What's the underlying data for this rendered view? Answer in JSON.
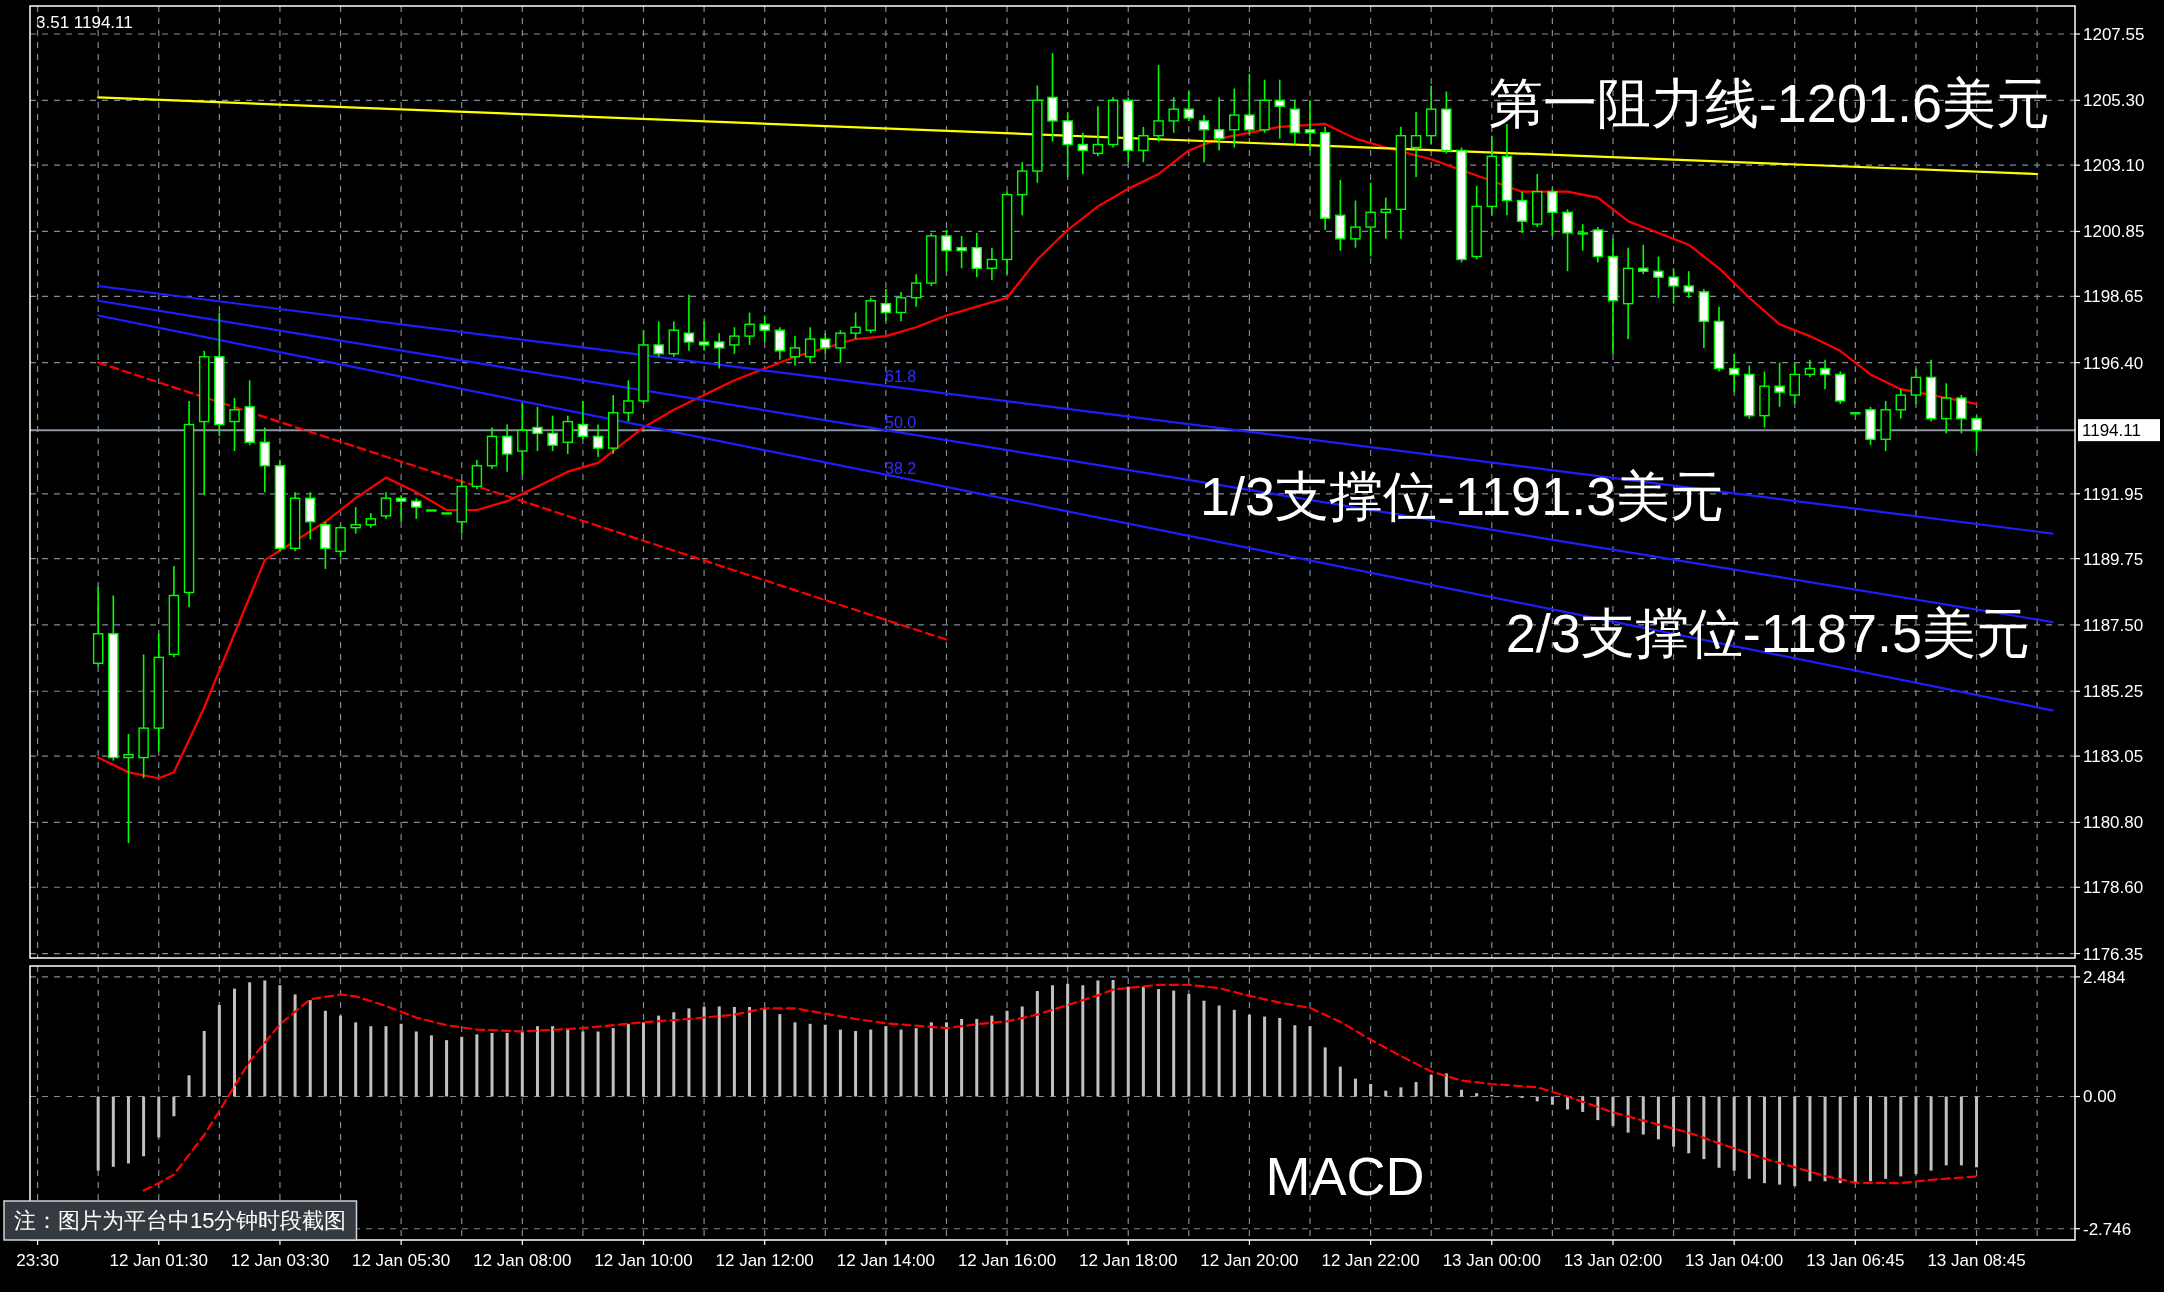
{
  "chart_data": [
    {
      "type": "candlestick",
      "categories": [
        null,
        null,
        null,
        null,
        null,
        null,
        null,
        null,
        null,
        null,
        null,
        null,
        null,
        null,
        null,
        null,
        null,
        null,
        null,
        null,
        null,
        null,
        null,
        null,
        null,
        null,
        null,
        null,
        null,
        null,
        null,
        null,
        null,
        null,
        null,
        null,
        null,
        null,
        null,
        null,
        null,
        null,
        null,
        null,
        null,
        null,
        null,
        null,
        null,
        null,
        null,
        null,
        null,
        null,
        null,
        null,
        null,
        null,
        null,
        null,
        null,
        null,
        null,
        null,
        null,
        null,
        null,
        null,
        null,
        null,
        null,
        null,
        null,
        null,
        null,
        null,
        null,
        null,
        null,
        null,
        null,
        null,
        null,
        null,
        null,
        null,
        null,
        null,
        null,
        null,
        null,
        null,
        null,
        null,
        null,
        null,
        null,
        null,
        null,
        null,
        null,
        null,
        null,
        null,
        null,
        null,
        null,
        null,
        null,
        null,
        null,
        null,
        null,
        null,
        null,
        null,
        null,
        null,
        null,
        null,
        null,
        null,
        null,
        null,
        null,
        null,
        null,
        null,
        null,
        null,
        null,
        null,
        null,
        null,
        null
      ],
      "ohlc": [
        null,
        null,
        null,
        null,
        [
          1186.2,
          1188.8,
          1186.1,
          1187.2
        ],
        [
          1187.2,
          1188.5,
          1182.9,
          1183.0
        ],
        [
          1183.0,
          1183.8,
          1180.1,
          1183.1
        ],
        [
          1183.0,
          1186.5,
          1182.3,
          1184.0
        ],
        [
          1184.0,
          1187.2,
          1183.2,
          1186.4
        ],
        [
          1186.5,
          1189.5,
          1186.4,
          1188.5
        ],
        [
          1188.6,
          1195.1,
          1188.1,
          1194.3
        ],
        [
          1194.4,
          1196.8,
          1191.9,
          1196.6
        ],
        [
          1196.6,
          1198.1,
          1193.9,
          1194.3
        ],
        [
          1194.4,
          1195.2,
          1193.4,
          1194.8
        ],
        [
          1194.9,
          1195.8,
          1193.6,
          1193.7
        ],
        [
          1193.7,
          1194.2,
          1192.0,
          1192.9
        ],
        [
          1192.9,
          1193.1,
          1190.0,
          1190.1
        ],
        [
          1190.1,
          1192.0,
          1190.0,
          1191.8
        ],
        [
          1191.8,
          1192.0,
          1190.4,
          1191.0
        ],
        [
          1190.9,
          1191.0,
          1189.4,
          1190.1
        ],
        [
          1190.0,
          1190.9,
          1189.8,
          1190.8
        ],
        [
          1190.8,
          1191.5,
          1190.6,
          1190.9
        ],
        [
          1190.9,
          1191.3,
          1190.8,
          1191.1
        ],
        [
          1191.2,
          1192.0,
          1191.1,
          1191.8
        ],
        [
          1191.8,
          1191.9,
          1191.0,
          1191.7
        ],
        [
          1191.7,
          1191.8,
          1191.1,
          1191.5
        ],
        [
          1191.4,
          1191.4,
          1191.4,
          1191.4
        ],
        [
          1191.3,
          1191.3,
          1191.3,
          1191.3
        ],
        [
          1191.0,
          1192.4,
          1190.6,
          1192.2
        ],
        [
          1192.2,
          1193.1,
          1192.1,
          1192.9
        ],
        [
          1192.9,
          1194.2,
          1192.8,
          1193.9
        ],
        [
          1193.9,
          1194.3,
          1192.7,
          1193.3
        ],
        [
          1193.4,
          1195.0,
          1192.6,
          1194.1
        ],
        [
          1194.2,
          1194.9,
          1193.4,
          1194.0
        ],
        [
          1194.0,
          1194.6,
          1193.4,
          1193.6
        ],
        [
          1193.7,
          1194.6,
          1193.3,
          1194.4
        ],
        [
          1194.3,
          1195.1,
          1193.8,
          1193.9
        ],
        [
          1193.9,
          1194.3,
          1193.2,
          1193.5
        ],
        [
          1193.5,
          1195.3,
          1193.3,
          1194.7
        ],
        [
          1194.7,
          1195.8,
          1194.4,
          1195.1
        ],
        [
          1195.1,
          1197.5,
          1195.0,
          1197.0
        ],
        [
          1197.0,
          1197.8,
          1196.6,
          1196.7
        ],
        [
          1196.7,
          1197.8,
          1196.6,
          1197.5
        ],
        [
          1197.4,
          1198.7,
          1196.8,
          1197.1
        ],
        [
          1197.1,
          1197.8,
          1196.8,
          1197.0
        ],
        [
          1197.1,
          1197.4,
          1196.2,
          1196.9
        ],
        [
          1197.0,
          1197.6,
          1196.7,
          1197.3
        ],
        [
          1197.3,
          1198.1,
          1197.0,
          1197.7
        ],
        [
          1197.7,
          1198.0,
          1197.1,
          1197.5
        ],
        [
          1197.5,
          1197.6,
          1196.5,
          1196.8
        ],
        [
          1196.6,
          1197.3,
          1196.3,
          1196.9
        ],
        [
          1196.6,
          1197.6,
          1196.4,
          1197.2
        ],
        [
          1197.2,
          1197.4,
          1196.7,
          1196.9
        ],
        [
          1196.9,
          1197.5,
          1196.4,
          1197.4
        ],
        [
          1197.4,
          1198.1,
          1197.2,
          1197.6
        ],
        [
          1197.5,
          1198.6,
          1197.4,
          1198.5
        ],
        [
          1198.4,
          1198.9,
          1197.8,
          1198.1
        ],
        [
          1198.1,
          1198.8,
          1197.8,
          1198.6
        ],
        [
          1198.6,
          1199.4,
          1198.3,
          1199.1
        ],
        [
          1199.1,
          1200.8,
          1199.0,
          1200.7
        ],
        [
          1200.7,
          1200.9,
          1199.5,
          1200.2
        ],
        [
          1200.3,
          1200.7,
          1199.6,
          1200.2
        ],
        [
          1200.3,
          1200.8,
          1199.3,
          1199.6
        ],
        [
          1199.6,
          1200.3,
          1199.2,
          1199.9
        ],
        [
          1199.9,
          1202.2,
          1199.4,
          1202.1
        ],
        [
          1202.1,
          1203.2,
          1201.4,
          1202.9
        ],
        [
          1202.9,
          1205.8,
          1202.5,
          1205.3
        ],
        [
          1205.4,
          1206.9,
          1203.9,
          1204.6
        ],
        [
          1204.6,
          1204.9,
          1202.7,
          1203.8
        ],
        [
          1203.8,
          1204.2,
          1202.8,
          1203.6
        ],
        [
          1203.5,
          1205.1,
          1203.4,
          1203.8
        ],
        [
          1203.8,
          1205.4,
          1203.7,
          1205.3
        ],
        [
          1205.3,
          1205.4,
          1203.2,
          1203.6
        ],
        [
          1203.6,
          1204.4,
          1203.2,
          1204.1
        ],
        [
          1204.1,
          1206.5,
          1203.9,
          1204.6
        ],
        [
          1204.6,
          1205.4,
          1204.2,
          1205.0
        ],
        [
          1205.0,
          1205.6,
          1204.6,
          1204.7
        ],
        [
          1204.6,
          1204.8,
          1203.2,
          1204.3
        ],
        [
          1204.3,
          1205.4,
          1203.6,
          1204.0
        ],
        [
          1204.3,
          1205.7,
          1203.7,
          1204.8
        ],
        [
          1204.8,
          1206.2,
          1204.1,
          1204.3
        ],
        [
          1204.3,
          1206.0,
          1204.2,
          1205.3
        ],
        [
          1205.3,
          1206.0,
          1204.0,
          1205.1
        ],
        [
          1205.0,
          1205.3,
          1203.8,
          1204.2
        ],
        [
          1204.3,
          1205.3,
          1203.6,
          1204.2
        ],
        [
          1204.2,
          1204.4,
          1200.9,
          1201.3
        ],
        [
          1201.4,
          1202.6,
          1200.2,
          1200.6
        ],
        [
          1200.6,
          1201.9,
          1200.3,
          1201.0
        ],
        [
          1201.0,
          1202.5,
          1200.0,
          1201.5
        ],
        [
          1201.5,
          1202.0,
          1200.6,
          1201.6
        ],
        [
          1201.6,
          1204.4,
          1200.6,
          1204.1
        ],
        [
          1203.7,
          1204.9,
          1202.7,
          1204.1
        ],
        [
          1204.1,
          1205.8,
          1203.8,
          1205.0
        ],
        [
          1205.0,
          1205.6,
          1203.5,
          1203.6
        ],
        [
          1203.6,
          1203.7,
          1199.8,
          1199.9
        ],
        [
          1200.0,
          1202.4,
          1199.9,
          1201.7
        ],
        [
          1201.7,
          1204.1,
          1201.4,
          1203.4
        ],
        [
          1203.4,
          1204.5,
          1201.4,
          1201.9
        ],
        [
          1201.9,
          1202.2,
          1200.8,
          1201.2
        ],
        [
          1201.1,
          1202.8,
          1201.0,
          1202.2
        ],
        [
          1202.2,
          1202.3,
          1200.7,
          1201.5
        ],
        [
          1201.5,
          1201.6,
          1199.5,
          1200.8
        ],
        [
          1200.8,
          1201.1,
          1200.2,
          1200.8
        ],
        [
          1200.9,
          1201.0,
          1199.8,
          1200.0
        ],
        [
          1200.0,
          1200.6,
          1196.7,
          1198.5
        ],
        [
          1198.4,
          1200.3,
          1197.2,
          1199.6
        ],
        [
          1199.6,
          1200.4,
          1199.4,
          1199.5
        ],
        [
          1199.5,
          1200.0,
          1198.6,
          1199.3
        ],
        [
          1199.3,
          1199.6,
          1198.4,
          1199.0
        ],
        [
          1199.0,
          1199.5,
          1198.6,
          1198.8
        ],
        [
          1198.8,
          1198.9,
          1196.9,
          1197.8
        ],
        [
          1197.8,
          1198.3,
          1196.1,
          1196.2
        ],
        [
          1196.2,
          1196.7,
          1195.4,
          1196.0
        ],
        [
          1196.0,
          1196.3,
          1194.5,
          1194.6
        ],
        [
          1194.6,
          1196.1,
          1194.2,
          1195.6
        ],
        [
          1195.6,
          1196.4,
          1194.9,
          1195.4
        ],
        [
          1195.3,
          1196.4,
          1195.0,
          1196.0
        ],
        [
          1196.0,
          1196.5,
          1195.9,
          1196.2
        ],
        [
          1196.2,
          1196.5,
          1195.5,
          1196.0
        ],
        [
          1196.0,
          1196.1,
          1195.0,
          1195.1
        ],
        [
          1194.7,
          1194.7,
          1194.7,
          1194.7
        ],
        [
          1194.8,
          1194.9,
          1193.6,
          1193.8
        ],
        [
          1193.8,
          1195.1,
          1193.4,
          1194.8
        ],
        [
          1194.8,
          1195.5,
          1194.5,
          1195.3
        ],
        [
          1195.3,
          1196.2,
          1195.0,
          1195.9
        ],
        [
          1195.9,
          1196.5,
          1194.4,
          1194.5
        ],
        [
          1194.5,
          1195.7,
          1194.0,
          1195.2
        ],
        [
          1195.2,
          1195.3,
          1194.0,
          1194.5
        ],
        [
          1194.5,
          1194.6,
          1193.4,
          1194.1
        ],
        null,
        null,
        null,
        null,
        null,
        null
      ],
      "series": [
        {
          "type": "line",
          "color": "#ff0000",
          "values": [
            null,
            null,
            null,
            null,
            1183.0,
            null,
            1182.5,
            null,
            1182.3,
            1182.5,
            null,
            1184.7,
            null,
            1187.2,
            null,
            1189.7,
            null,
            null,
            null,
            1191.0,
            null,
            1191.8,
            null,
            1192.5,
            null,
            1192.0,
            null,
            1191.4,
            null,
            1191.4,
            null,
            1191.7,
            null,
            1192.2,
            null,
            1192.7,
            null,
            1193.0,
            null,
            null,
            1194.2,
            null,
            1194.8,
            null,
            1195.3,
            null,
            1195.8,
            null,
            1196.2,
            null,
            1196.6,
            null,
            null,
            null,
            1197.2,
            null,
            1197.3,
            null,
            1197.6,
            null,
            1198.0,
            null,
            1198.3,
            null,
            1198.6,
            null,
            1199.9,
            null,
            1200.9,
            null,
            1201.7,
            null,
            1202.3,
            null,
            1202.8,
            null,
            1203.6,
            null,
            1204.0,
            null,
            null,
            null,
            1204.4,
            null,
            null,
            1204.5,
            null,
            1204.0,
            null,
            1203.7,
            null,
            null,
            1203.3,
            null,
            null,
            null,
            null,
            null,
            1202.2,
            null,
            null,
            1202.2,
            null,
            1202.0,
            null,
            1201.2,
            null,
            1200.8,
            null,
            1200.4,
            null,
            1199.6,
            null,
            1198.6,
            null,
            1197.7,
            null,
            1197.3,
            null,
            1196.8,
            null,
            1196.0,
            null,
            1195.5,
            null,
            null,
            null,
            null,
            1195.0,
            null,
            null,
            null,
            null,
            null,
            null
          ]
        },
        {
          "type": "line",
          "color": "#ffff00",
          "values": [
            null,
            null,
            null,
            null,
            1205.4,
            null,
            null,
            null,
            null,
            null,
            null,
            null,
            null,
            null,
            null,
            null,
            null,
            null,
            null,
            null,
            null,
            null,
            null,
            null,
            null,
            null,
            null,
            null,
            null,
            null,
            null,
            null,
            null,
            null,
            null,
            null,
            null,
            null,
            null,
            null,
            null,
            null,
            null,
            null,
            null,
            null,
            null,
            null,
            null,
            null,
            null,
            null,
            null,
            null,
            null,
            null,
            null,
            null,
            null,
            null,
            null,
            null,
            null,
            null,
            null,
            null,
            null,
            null,
            null,
            null,
            null,
            null,
            null,
            null,
            null,
            null,
            null,
            null,
            null,
            null,
            null,
            null,
            null,
            null,
            null,
            null,
            null,
            null,
            null,
            null,
            null,
            null,
            null,
            null,
            null,
            null,
            null,
            null,
            null,
            null,
            null,
            null,
            null,
            null,
            null,
            null,
            null,
            null,
            null,
            null,
            null,
            null,
            null,
            null,
            null,
            null,
            null,
            null,
            null,
            null,
            null,
            null,
            null,
            null,
            null,
            null,
            null,
            null,
            null,
            null,
            null,
            null,
            1202.8,
            null,
            null
          ]
        },
        {
          "type": "line",
          "color": "#1e1eff",
          "values": [
            null,
            null,
            null,
            null,
            1199.0,
            null,
            null,
            null,
            null,
            null,
            null,
            null,
            null,
            null,
            null,
            null,
            null,
            null,
            null,
            null,
            null,
            null,
            null,
            null,
            null,
            null,
            null,
            null,
            null,
            null,
            null,
            null,
            null,
            null,
            null,
            null,
            null,
            null,
            null,
            null,
            null,
            null,
            null,
            null,
            null,
            null,
            null,
            null,
            null,
            null,
            null,
            null,
            null,
            null,
            null,
            null,
            null,
            null,
            null,
            null,
            null,
            null,
            null,
            null,
            null,
            null,
            null,
            null,
            null,
            null,
            null,
            null,
            null,
            null,
            null,
            null,
            null,
            null,
            null,
            null,
            null,
            null,
            null,
            null,
            null,
            null,
            null,
            null,
            null,
            null,
            null,
            null,
            null,
            null,
            null,
            null,
            null,
            null,
            null,
            null,
            null,
            null,
            null,
            null,
            null,
            null,
            null,
            null,
            null,
            null,
            null,
            null,
            null,
            null,
            null,
            null,
            null,
            null,
            null,
            null,
            null,
            null,
            null,
            null,
            null,
            null,
            null,
            null,
            null,
            null,
            null,
            null,
            null,
            1190.6,
            null
          ]
        },
        {
          "type": "line",
          "color": "#1e1eff",
          "values": [
            null,
            null,
            null,
            null,
            1198.5,
            null,
            null,
            null,
            null,
            null,
            null,
            null,
            null,
            null,
            null,
            null,
            null,
            null,
            null,
            null,
            null,
            null,
            null,
            null,
            null,
            null,
            null,
            null,
            null,
            null,
            null,
            null,
            null,
            null,
            null,
            null,
            null,
            null,
            null,
            null,
            null,
            null,
            null,
            null,
            null,
            null,
            null,
            null,
            null,
            null,
            null,
            null,
            null,
            null,
            null,
            null,
            null,
            null,
            null,
            null,
            null,
            null,
            null,
            null,
            null,
            null,
            null,
            null,
            null,
            null,
            null,
            null,
            null,
            null,
            null,
            null,
            null,
            null,
            null,
            null,
            null,
            null,
            null,
            null,
            null,
            null,
            null,
            null,
            null,
            null,
            null,
            null,
            null,
            null,
            null,
            null,
            null,
            null,
            null,
            null,
            null,
            null,
            null,
            null,
            null,
            null,
            null,
            null,
            null,
            null,
            null,
            null,
            null,
            null,
            null,
            null,
            null,
            null,
            null,
            null,
            null,
            null,
            null,
            null,
            null,
            null,
            null,
            null,
            null,
            null,
            null,
            null,
            null,
            1187.6,
            null
          ]
        },
        {
          "type": "line",
          "color": "#1e1eff",
          "values": [
            null,
            null,
            null,
            null,
            1198.0,
            null,
            null,
            null,
            null,
            null,
            null,
            null,
            null,
            null,
            null,
            null,
            null,
            null,
            null,
            null,
            null,
            null,
            null,
            null,
            null,
            null,
            null,
            null,
            null,
            null,
            null,
            null,
            null,
            null,
            null,
            null,
            null,
            null,
            null,
            null,
            null,
            null,
            null,
            null,
            null,
            null,
            null,
            null,
            null,
            null,
            null,
            null,
            null,
            null,
            null,
            null,
            null,
            null,
            null,
            null,
            null,
            null,
            null,
            null,
            null,
            null,
            null,
            null,
            null,
            null,
            null,
            null,
            null,
            null,
            null,
            null,
            null,
            null,
            null,
            null,
            null,
            null,
            null,
            null,
            null,
            null,
            null,
            null,
            null,
            null,
            null,
            null,
            null,
            null,
            null,
            null,
            null,
            null,
            null,
            null,
            null,
            null,
            null,
            null,
            null,
            null,
            null,
            null,
            null,
            null,
            null,
            null,
            null,
            null,
            null,
            null,
            null,
            null,
            null,
            null,
            null,
            null,
            null,
            null,
            null,
            null,
            null,
            null,
            null,
            null,
            null,
            null,
            null,
            1184.6,
            null
          ]
        },
        {
          "type": "line",
          "color": "#ff0000",
          "line_style": "dashed",
          "values": [
            null,
            null,
            null,
            null,
            1196.4,
            null,
            null,
            null,
            null,
            null,
            null,
            null,
            null,
            null,
            null,
            null,
            null,
            null,
            null,
            null,
            null,
            null,
            null,
            null,
            null,
            null,
            null,
            null,
            null,
            null,
            null,
            null,
            null,
            null,
            null,
            null,
            null,
            null,
            null,
            null,
            null,
            null,
            null,
            null,
            null,
            null,
            null,
            null,
            null,
            null,
            null,
            null,
            null,
            null,
            null,
            null,
            null,
            null,
            null,
            null,
            1187.0,
            null,
            null,
            null,
            null,
            null,
            null,
            null,
            null,
            null,
            null,
            null,
            null,
            null,
            null,
            null,
            null,
            null,
            null,
            null,
            null,
            null,
            null,
            null,
            null,
            null,
            null,
            null,
            null,
            null,
            null,
            null,
            null,
            null,
            null,
            null,
            null,
            null,
            null,
            null,
            null,
            null,
            null,
            null,
            null,
            null,
            null,
            null,
            null,
            null,
            null,
            null,
            null,
            null,
            null,
            null,
            null,
            null,
            null,
            null,
            null,
            null,
            null,
            null,
            null,
            null,
            null,
            null,
            null,
            null,
            null,
            null,
            null,
            null,
            null
          ]
        }
      ],
      "ylim": [
        1176.2,
        1208.5
      ],
      "yticks": [
        {
          "value": 1207.55,
          "label": "1207.55"
        },
        {
          "value": 1205.3,
          "label": "1205.30"
        },
        {
          "value": 1203.1,
          "label": "1203.10"
        },
        {
          "value": 1200.85,
          "label": "1200.85"
        },
        {
          "value": 1198.65,
          "label": "1198.65"
        },
        {
          "value": 1196.4,
          "label": "1196.40"
        },
        {
          "value": 1191.95,
          "label": "1191.95"
        },
        {
          "value": 1189.75,
          "label": "1189.75"
        },
        {
          "value": 1187.5,
          "label": "1187.50"
        },
        {
          "value": 1185.25,
          "label": "1185.25"
        },
        {
          "value": 1183.05,
          "label": "1183.05"
        },
        {
          "value": 1180.8,
          "label": "1180.80"
        },
        {
          "value": 1178.6,
          "label": "1178.60"
        },
        {
          "value": 1176.35,
          "label": "1176.35"
        }
      ],
      "ref_lines": [
        {
          "axis": "y",
          "value": 1194.11,
          "label": "1194.11",
          "color": "#8c96a0"
        }
      ],
      "grid": true,
      "tick_labels": "y",
      "annotations": [
        "3.51 1194.11",
        "第一阻力线-1201.6美元",
        "1/3支撑位-1191.3美元",
        "2/3支撑位-1187.5美元",
        "61.8",
        "50.0",
        "38.2"
      ]
    },
    {
      "type": "bar",
      "categories": [
        "23:30",
        null,
        null,
        null,
        null,
        null,
        null,
        null,
        "12 Jan 01:30",
        null,
        null,
        null,
        null,
        null,
        null,
        null,
        "12 Jan 03:30",
        null,
        null,
        null,
        null,
        null,
        null,
        null,
        "12 Jan 05:30",
        null,
        null,
        null,
        null,
        null,
        null,
        null,
        "12 Jan 08:00",
        null,
        null,
        null,
        null,
        null,
        null,
        null,
        "12 Jan 10:00",
        null,
        null,
        null,
        null,
        null,
        null,
        null,
        "12 Jan 12:00",
        null,
        null,
        null,
        null,
        null,
        null,
        null,
        "12 Jan 14:00",
        null,
        null,
        null,
        null,
        null,
        null,
        null,
        "12 Jan 16:00",
        null,
        null,
        null,
        null,
        null,
        null,
        null,
        "12 Jan 18:00",
        null,
        null,
        null,
        null,
        null,
        null,
        null,
        "12 Jan 20:00",
        null,
        null,
        null,
        null,
        null,
        null,
        null,
        "12 Jan 22:00",
        null,
        null,
        null,
        null,
        null,
        null,
        null,
        "13 Jan 00:00",
        null,
        null,
        null,
        null,
        null,
        null,
        null,
        "13 Jan 02:00",
        null,
        null,
        null,
        null,
        null,
        null,
        null,
        "13 Jan 04:00",
        null,
        null,
        null,
        null,
        null,
        null,
        null,
        "13 Jan 06:45",
        null,
        null,
        null,
        null,
        null,
        null,
        null,
        "13 Jan 08:45",
        null,
        null,
        null,
        null,
        null,
        null
      ],
      "series": [
        {
          "type": "bar",
          "color": "#c0c0c0",
          "values": [
            null,
            null,
            null,
            null,
            -1.54,
            -1.46,
            -1.39,
            -1.24,
            -0.85,
            -0.41,
            0.44,
            1.36,
            1.9,
            2.24,
            2.37,
            2.41,
            2.31,
            2.12,
            2.0,
            1.78,
            1.68,
            1.54,
            1.46,
            1.46,
            1.51,
            1.35,
            1.27,
            1.17,
            1.24,
            1.29,
            1.32,
            1.32,
            1.35,
            1.46,
            1.46,
            1.42,
            1.35,
            1.35,
            1.42,
            1.51,
            1.54,
            1.68,
            1.75,
            1.83,
            1.86,
            1.87,
            1.86,
            1.86,
            1.83,
            1.71,
            1.54,
            1.51,
            1.49,
            1.39,
            1.36,
            1.39,
            1.46,
            1.39,
            1.42,
            1.54,
            1.54,
            1.61,
            1.61,
            1.68,
            1.78,
            1.87,
            2.19,
            2.31,
            2.34,
            2.31,
            2.41,
            2.42,
            2.28,
            2.28,
            2.23,
            2.2,
            2.13,
            1.99,
            1.89,
            1.8,
            1.7,
            1.66,
            1.63,
            1.48,
            1.46,
            1.02,
            0.62,
            0.37,
            0.26,
            0.12,
            0.19,
            0.3,
            0.45,
            0.48,
            0.14,
            0.07,
            0.03,
            -0.02,
            -0.03,
            -0.1,
            -0.17,
            -0.27,
            -0.32,
            -0.49,
            -0.61,
            -0.75,
            -0.79,
            -0.89,
            -1.04,
            -1.18,
            -1.3,
            -1.48,
            -1.54,
            -1.71,
            -1.8,
            -1.83,
            -1.86,
            -1.76,
            -1.76,
            -1.8,
            -1.8,
            -1.76,
            -1.71,
            -1.66,
            -1.61,
            -1.54,
            -1.43,
            -1.43,
            -1.47,
            null,
            null,
            null,
            null,
            null,
            null
          ]
        },
        {
          "type": "line",
          "color": "#ff0000",
          "line_style": "dashed",
          "values": [
            null,
            null,
            null,
            null,
            null,
            null,
            null,
            -1.95,
            -1.8,
            -1.62,
            null,
            -0.8,
            -0.3,
            null,
            0.73,
            null,
            1.5,
            null,
            2.02,
            null,
            2.12,
            2.08,
            null,
            1.88,
            null,
            1.64,
            null,
            1.48,
            null,
            1.39,
            null,
            null,
            1.35,
            null,
            null,
            null,
            1.42,
            null,
            null,
            null,
            1.54,
            null,
            null,
            1.61,
            null,
            null,
            1.7,
            null,
            1.83,
            null,
            1.83,
            null,
            1.72,
            null,
            1.61,
            null,
            1.52,
            null,
            1.47,
            null,
            1.42,
            null,
            1.5,
            null,
            1.56,
            null,
            1.7,
            null,
            1.9,
            null,
            2.1,
            2.22,
            null,
            null,
            2.32,
            null,
            2.32,
            null,
            2.25,
            null,
            2.09,
            null,
            1.95,
            null,
            1.84,
            null,
            1.55,
            null,
            1.18,
            null,
            0.84,
            null,
            0.52,
            null,
            0.33,
            null,
            0.26,
            null,
            null,
            0.19,
            null,
            0.0,
            null,
            null,
            -0.33,
            null,
            -0.5,
            null,
            null,
            -0.75,
            null,
            -0.97,
            null,
            null,
            -1.29,
            null,
            -1.47,
            null,
            -1.65,
            null,
            -1.79,
            null,
            null,
            -1.8,
            null,
            -1.73,
            null,
            null,
            -1.66,
            null,
            null,
            null,
            null,
            null,
            null
          ]
        }
      ],
      "ylim": [
        -2.98,
        2.71
      ],
      "yticks": [
        {
          "value": 2.484,
          "label": "2.484"
        },
        {
          "value": 0,
          "label": "0.00"
        },
        {
          "value": -2.746,
          "label": "-2.746"
        }
      ],
      "grid": true,
      "annotations": [
        "MACD",
        "注：图片为平台中15分钟时段截图"
      ]
    }
  ]
}
